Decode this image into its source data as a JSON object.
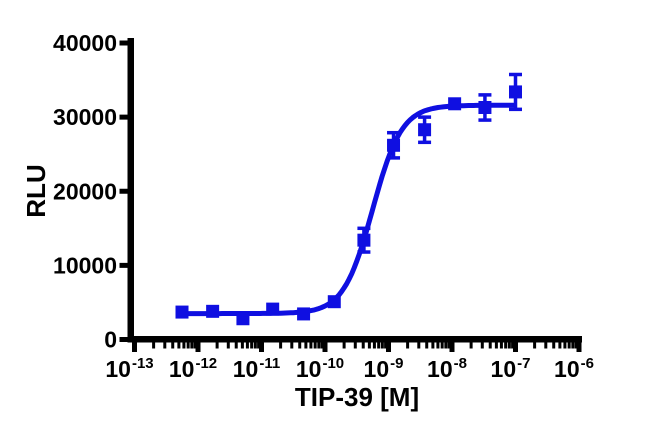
{
  "chart_data": {
    "type": "scatter",
    "subtype": "dose-response-curve",
    "title": "",
    "xlabel": "TIP-39 [M]",
    "ylabel": "RLU",
    "x_scale": "log10",
    "x_tick_base": "10",
    "x_tick_exponents": [
      -13,
      -12,
      -11,
      -10,
      -9,
      -8,
      -7,
      -6
    ],
    "xlim_exponents": [
      -13,
      -6
    ],
    "y_ticks": [
      0,
      10000,
      20000,
      30000,
      40000
    ],
    "ylim": [
      0,
      40000
    ],
    "grid": false,
    "legend": "none",
    "background": "#ffffff",
    "axis_color": "#000000",
    "series": [
      {
        "name": "TIP-39",
        "color": "#0f0fe1",
        "marker": "filled-square",
        "points": [
          {
            "conc_M": 5.6e-13,
            "rlu": 3700,
            "sem": null
          },
          {
            "conc_M": 1.7e-12,
            "rlu": 3800,
            "sem": null
          },
          {
            "conc_M": 5.1e-12,
            "rlu": 2800,
            "sem": null
          },
          {
            "conc_M": 1.5e-11,
            "rlu": 4100,
            "sem": null
          },
          {
            "conc_M": 4.6e-11,
            "rlu": 3450,
            "sem": null
          },
          {
            "conc_M": 1.4e-10,
            "rlu": 5100,
            "sem": null
          },
          {
            "conc_M": 4.1e-10,
            "rlu": 13400,
            "sem": 1600
          },
          {
            "conc_M": 1.2e-09,
            "rlu": 26200,
            "sem": 1700
          },
          {
            "conc_M": 3.7e-09,
            "rlu": 28300,
            "sem": 1700
          },
          {
            "conc_M": 1.1e-08,
            "rlu": 31800,
            "sem": null
          },
          {
            "conc_M": 3.3e-08,
            "rlu": 31300,
            "sem": 1700
          },
          {
            "conc_M": 1e-07,
            "rlu": 33400,
            "sem": 2350
          }
        ],
        "fit_curve": {
          "model": "4PL",
          "bottom": 3500,
          "top": 31600,
          "log10_ec50": -9.25,
          "hill_slope": 1.9,
          "x_range_log10": [
            -12.26,
            -7.02
          ]
        }
      }
    ]
  }
}
